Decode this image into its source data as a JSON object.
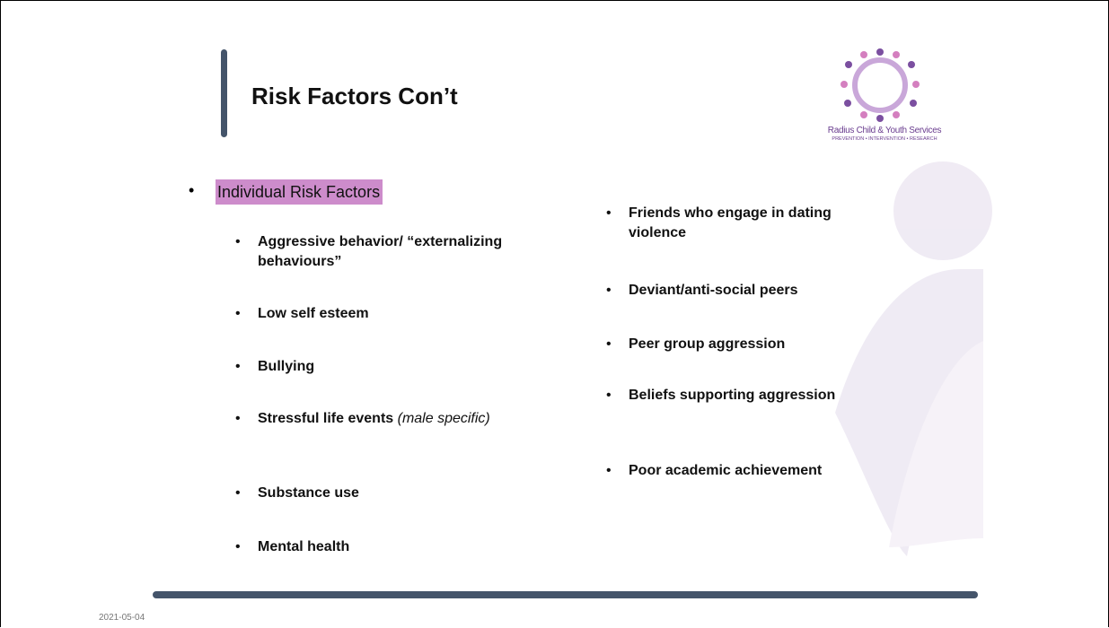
{
  "header": {
    "title": "Risk Factors Con’t"
  },
  "logo": {
    "name": "Radius Child & Youth Services",
    "tagline": "PREVENTION • INTERVENTION • RESEARCH"
  },
  "section": {
    "heading": "Individual Risk Factors"
  },
  "left_list": [
    {
      "text": "Aggressive behavior/ “externalizing behaviours”"
    },
    {
      "text": "Low self esteem"
    },
    {
      "text": "Bullying"
    },
    {
      "text": "Stressful life events",
      "emphasis": "(male specific)"
    },
    {
      "text": "Substance use"
    },
    {
      "text": "Mental health"
    }
  ],
  "right_list": [
    {
      "text": "Friends who engage in dating violence"
    },
    {
      "text": "Deviant/anti-social peers"
    },
    {
      "text": "Peer group aggression"
    },
    {
      "text": "Beliefs supporting aggression"
    },
    {
      "text": "Poor academic achievement"
    }
  ],
  "footer": {
    "date": "2021-05-04"
  }
}
